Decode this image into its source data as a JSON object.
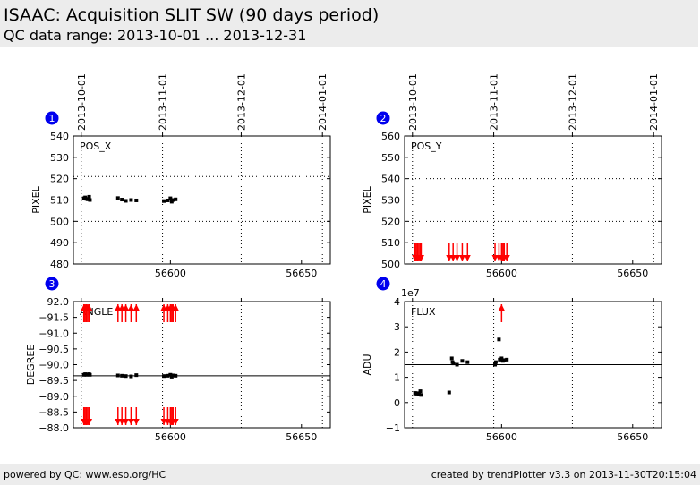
{
  "header": {
    "title": "ISAAC: Acquisition SLIT SW (90 days period)",
    "subtitle": "QC data range: 2013-10-01 ... 2013-12-31"
  },
  "footer": {
    "left": "powered by QC: www.eso.org/HC",
    "right": "created by trendPlotter v3.3 on 2013-11-30T20:15:04"
  },
  "colors": {
    "data": "#000000",
    "outlier": "#ff0000",
    "badge": "#0000ee",
    "reference": "#000000"
  },
  "chart_data": [
    {
      "id": "1",
      "type": "scatter",
      "label": "POS_X",
      "ylabel": "PIXEL",
      "ylim": [
        480,
        540
      ],
      "yticks": [
        480,
        490,
        500,
        510,
        520,
        530,
        540
      ],
      "xlim": [
        56563,
        56661
      ],
      "xticks": [
        56600,
        56650
      ],
      "date_ticks": [
        {
          "label": "2013-10-01",
          "mjd": 56566
        },
        {
          "label": "2013-11-01",
          "mjd": 56597
        },
        {
          "label": "2013-12-01",
          "mjd": 56627
        },
        {
          "label": "2014-01-01",
          "mjd": 56658
        }
      ],
      "reference_line": 510,
      "dotted_lines": [
        500,
        521
      ],
      "points": [
        [
          56567,
          510.8
        ],
        [
          56567.5,
          511.2
        ],
        [
          56568,
          510.5
        ],
        [
          56568.5,
          510.3
        ],
        [
          56569,
          511.5
        ],
        [
          56569.3,
          510.0
        ],
        [
          56580,
          510.9
        ],
        [
          56581.5,
          510.2
        ],
        [
          56583,
          509.6
        ],
        [
          56585,
          510.0
        ],
        [
          56587,
          509.8
        ],
        [
          56597.5,
          509.5
        ],
        [
          56599,
          509.8
        ],
        [
          56600,
          510.8
        ],
        [
          56600.5,
          509.2
        ],
        [
          56601,
          510.0
        ],
        [
          56602,
          510.3
        ]
      ],
      "outliers_low": [],
      "outliers_high": []
    },
    {
      "id": "2",
      "type": "scatter",
      "label": "POS_Y",
      "ylabel": "PIXEL",
      "ylim": [
        500,
        560
      ],
      "yticks": [
        500,
        510,
        520,
        530,
        540,
        550,
        560
      ],
      "xlim": [
        56563,
        56661
      ],
      "xticks": [
        56600,
        56650
      ],
      "date_ticks": [
        {
          "label": "2013-10-01",
          "mjd": 56566
        },
        {
          "label": "2013-11-01",
          "mjd": 56597
        },
        {
          "label": "2013-12-01",
          "mjd": 56627
        },
        {
          "label": "2014-01-01",
          "mjd": 56658
        }
      ],
      "reference_line": null,
      "dotted_lines": [
        520,
        540
      ],
      "points": [],
      "outliers_low": [
        56567,
        56567.5,
        56568,
        56568.5,
        56569,
        56569.3,
        56580,
        56581.5,
        56583,
        56585,
        56587,
        56597.5,
        56599,
        56600,
        56600.5,
        56601,
        56602
      ],
      "outliers_high": []
    },
    {
      "id": "3",
      "type": "scatter",
      "label": "ANGLE",
      "ylabel": "DEGREE",
      "ylim": [
        -88.0,
        -92.0
      ],
      "yticks": [
        -88.0,
        -88.5,
        -89.0,
        -89.5,
        -90.0,
        -90.5,
        -91.0,
        -91.5,
        -92.0
      ],
      "xlim": [
        56563,
        56661
      ],
      "xticks": [
        56600,
        56650
      ],
      "date_ticks": [
        {
          "label": "2013-10-01",
          "mjd": 56566
        },
        {
          "label": "2013-11-01",
          "mjd": 56597
        },
        {
          "label": "2013-12-01",
          "mjd": 56627
        },
        {
          "label": "2014-01-01",
          "mjd": 56658
        }
      ],
      "reference_line": -89.65,
      "dotted_lines": [],
      "points": [
        [
          56567,
          -89.68
        ],
        [
          56567.5,
          -89.7
        ],
        [
          56568,
          -89.68
        ],
        [
          56568.5,
          -89.69
        ],
        [
          56569,
          -89.7
        ],
        [
          56569.3,
          -89.68
        ],
        [
          56580,
          -89.66
        ],
        [
          56581.5,
          -89.65
        ],
        [
          56583,
          -89.64
        ],
        [
          56585,
          -89.63
        ],
        [
          56587,
          -89.67
        ],
        [
          56597.5,
          -89.64
        ],
        [
          56599,
          -89.65
        ],
        [
          56600,
          -89.68
        ],
        [
          56600.5,
          -89.62
        ],
        [
          56601,
          -89.66
        ],
        [
          56602,
          -89.65
        ]
      ],
      "outliers_low": [
        56567,
        56567.5,
        56568,
        56568.5,
        56569,
        56580,
        56581.5,
        56583,
        56585,
        56587,
        56597.5,
        56599,
        56600,
        56600.5,
        56601,
        56602
      ],
      "outliers_high": [
        56567,
        56567.5,
        56568,
        56568.5,
        56569,
        56580,
        56581.5,
        56583,
        56585,
        56587,
        56597.5,
        56599,
        56600,
        56600.5,
        56601,
        56602
      ]
    },
    {
      "id": "4",
      "type": "scatter",
      "label": "FLUX",
      "ylabel": "ADU",
      "multiplier": "1e7",
      "ylim": [
        -1,
        4
      ],
      "yticks": [
        -1,
        0,
        1,
        2,
        3,
        4
      ],
      "xlim": [
        56563,
        56661
      ],
      "xticks": [
        56600,
        56650
      ],
      "date_ticks": [
        {
          "label": "2013-10-01",
          "mjd": 56566
        },
        {
          "label": "2013-11-01",
          "mjd": 56597
        },
        {
          "label": "2013-12-01",
          "mjd": 56627
        },
        {
          "label": "2014-01-01",
          "mjd": 56658
        }
      ],
      "reference_line": 1.5,
      "dotted_lines": [],
      "points": [
        [
          56567,
          0.38
        ],
        [
          56567.5,
          0.35
        ],
        [
          56568,
          0.37
        ],
        [
          56568.5,
          0.33
        ],
        [
          56569,
          0.45
        ],
        [
          56569.3,
          0.3
        ],
        [
          56580,
          0.4
        ],
        [
          56581,
          1.75
        ],
        [
          56581.3,
          1.6
        ],
        [
          56581.6,
          1.55
        ],
        [
          56583,
          1.5
        ],
        [
          56585,
          1.65
        ],
        [
          56587,
          1.6
        ],
        [
          56597.5,
          1.5
        ],
        [
          56597.8,
          1.6
        ],
        [
          56599,
          2.5
        ],
        [
          56599.3,
          1.7
        ],
        [
          56600,
          1.75
        ],
        [
          56600.5,
          1.65
        ],
        [
          56601,
          1.68
        ],
        [
          56602,
          1.7
        ]
      ],
      "outliers_low": [],
      "outliers_high": [
        56600
      ]
    }
  ]
}
